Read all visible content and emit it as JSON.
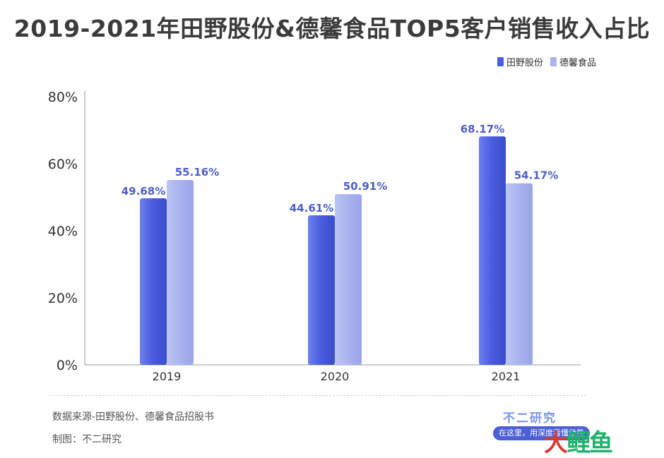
{
  "title": "2019-2021年田野股份&德馨食品TOP5客户销售收入占比",
  "legend": [
    {
      "name": "田野股份",
      "color": "#4a5ee0"
    },
    {
      "name": "德馨食品",
      "color": "#aab3ef"
    }
  ],
  "chart_data": {
    "type": "bar",
    "categories": [
      "2019",
      "2020",
      "2021"
    ],
    "series": [
      {
        "name": "田野股份",
        "values": [
          49.68,
          44.61,
          68.17
        ],
        "labels": [
          "49.68%",
          "44.61%",
          "68.17%"
        ]
      },
      {
        "name": "德馨食品",
        "values": [
          55.16,
          50.91,
          54.17
        ],
        "labels": [
          "55.16%",
          "50.91%",
          "54.17%"
        ]
      }
    ],
    "ylim": [
      0,
      80
    ],
    "yticks": [
      0,
      20,
      40,
      60,
      80
    ],
    "ytick_labels": [
      "0%",
      "20%",
      "40%",
      "60%",
      "80%"
    ],
    "grid": false,
    "legend_position": "top-right"
  },
  "footer": {
    "source": "数据来源-田野股份、德馨食品招股书",
    "maker": "制图：不二研究",
    "brand": "不二研究",
    "slogan": "在这里，用深度看懂趋势",
    "corner_mark_a": "大",
    "corner_mark_b": "鲤鱼"
  }
}
